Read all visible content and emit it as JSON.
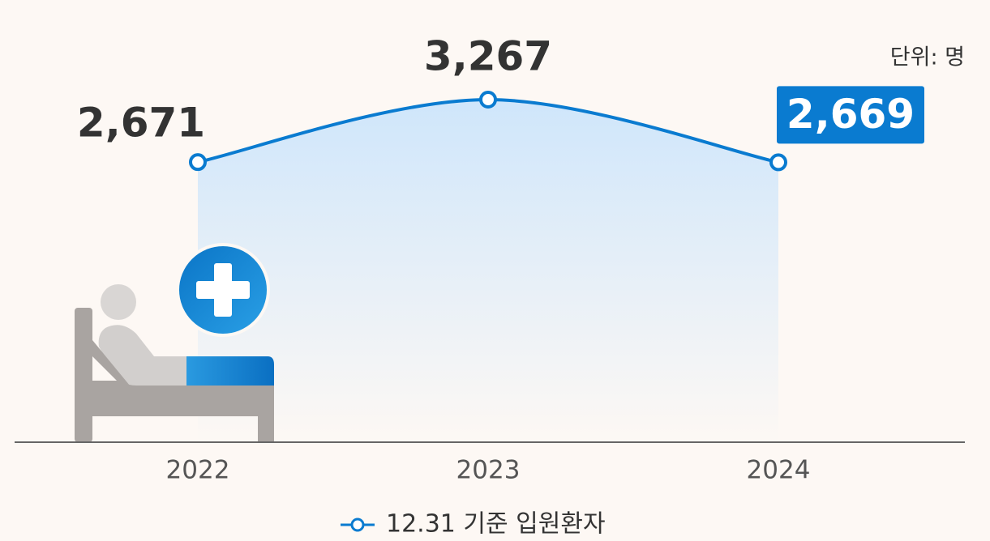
{
  "chart_data": {
    "type": "line",
    "unit": "단위: 명",
    "categories": [
      "2022",
      "2023",
      "2024"
    ],
    "series": [
      {
        "name": "12.31 기준 입원환자",
        "color": "#0a7bd0",
        "values": [
          2671,
          3267,
          2669
        ],
        "value_labels": [
          "2,671",
          "3,267",
          "2,669"
        ]
      }
    ],
    "legend": "bottom"
  }
}
